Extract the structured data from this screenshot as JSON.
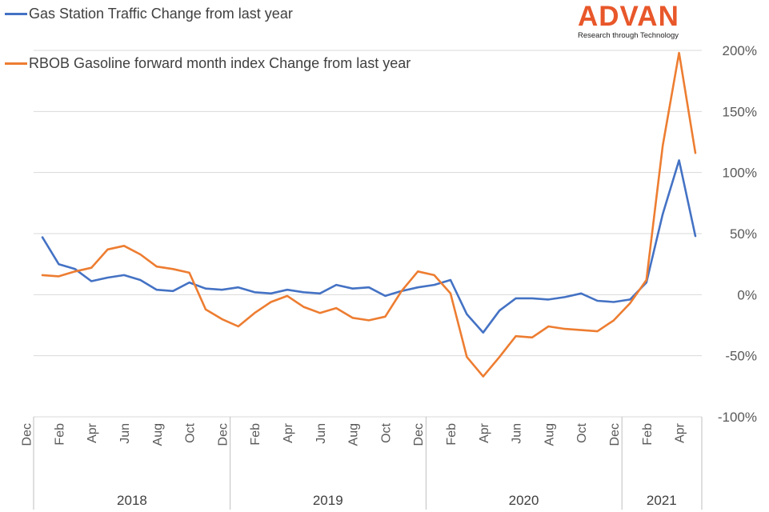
{
  "logo": {
    "word": "ADVAN",
    "tagline": "Research through Technology"
  },
  "colors": {
    "gas": "#4472c4",
    "rbob": "#ed7d31",
    "grid": "#d9d9d9",
    "axis": "#bfbfbf"
  },
  "chart_data": {
    "type": "line",
    "title": "",
    "xlabel": "",
    "ylabel": "",
    "ylim": [
      -100,
      200
    ],
    "y_ticks": [
      200,
      150,
      100,
      50,
      0,
      -50,
      -100
    ],
    "y_tick_labels": [
      "200%",
      "150%",
      "100%",
      "50%",
      "0%",
      "-50%",
      "-100%"
    ],
    "grid": true,
    "legend_position": "top-left",
    "x_tick_labels": [
      "Dec",
      "Feb",
      "Apr",
      "Jun",
      "Aug",
      "Oct",
      "Dec",
      "Feb",
      "Apr",
      "Jun",
      "Aug",
      "Oct",
      "Dec",
      "Feb",
      "Apr",
      "Jun",
      "Aug",
      "Oct",
      "Dec",
      "Feb",
      "Apr"
    ],
    "year_groups": [
      {
        "label": "2018",
        "start": 0,
        "end": 12
      },
      {
        "label": "2019",
        "start": 12,
        "end": 24
      },
      {
        "label": "2020",
        "start": 24,
        "end": 36
      },
      {
        "label": "2021",
        "start": 36,
        "end": 41
      }
    ],
    "months": [
      "Jan 2018",
      "Feb 2018",
      "Mar 2018",
      "Apr 2018",
      "May 2018",
      "Jun 2018",
      "Jul 2018",
      "Aug 2018",
      "Sep 2018",
      "Oct 2018",
      "Nov 2018",
      "Dec 2018",
      "Jan 2019",
      "Feb 2019",
      "Mar 2019",
      "Apr 2019",
      "May 2019",
      "Jun 2019",
      "Jul 2019",
      "Aug 2019",
      "Sep 2019",
      "Oct 2019",
      "Nov 2019",
      "Dec 2019",
      "Jan 2020",
      "Feb 2020",
      "Mar 2020",
      "Apr 2020",
      "May 2020",
      "Jun 2020",
      "Jul 2020",
      "Aug 2020",
      "Sep 2020",
      "Oct 2020",
      "Nov 2020",
      "Dec 2020",
      "Jan 2021",
      "Feb 2021",
      "Mar 2021",
      "Apr 2021",
      "May 2021"
    ],
    "series": [
      {
        "name": "Gas Station Traffic Change from last year",
        "color": "#4472c4",
        "values": [
          47,
          25,
          21,
          11,
          14,
          16,
          12,
          4,
          3,
          10,
          5,
          4,
          6,
          2,
          1,
          4,
          2,
          1,
          8,
          5,
          6,
          -1,
          3,
          6,
          8,
          12,
          -16,
          -31,
          -13,
          -3,
          -3,
          -4,
          -2,
          1,
          -5,
          -6,
          -4,
          10,
          66,
          110,
          48
        ]
      },
      {
        "name": "RBOB Gasoline forward month index Change from last year",
        "color": "#ed7d31",
        "values": [
          16,
          15,
          19,
          22,
          37,
          40,
          33,
          23,
          21,
          18,
          -12,
          -20,
          -26,
          -15,
          -6,
          -1,
          -10,
          -15,
          -11,
          -19,
          -21,
          -18,
          3,
          19,
          16,
          1,
          -51,
          -67,
          -51,
          -34,
          -35,
          -26,
          -28,
          -29,
          -30,
          -21,
          -7,
          12,
          122,
          198,
          116
        ]
      }
    ]
  }
}
